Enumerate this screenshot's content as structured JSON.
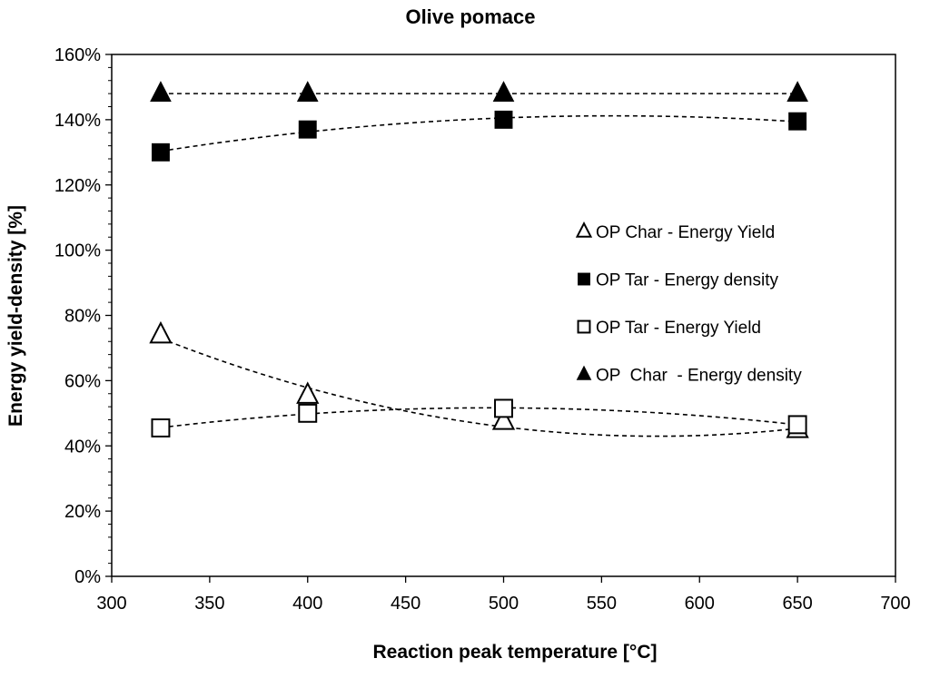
{
  "chart_data": {
    "type": "scatter",
    "title": "Olive pomace",
    "xlabel": "Reaction peak temperature [°C]",
    "ylabel": "Energy yield-density [%]",
    "xlim": [
      300,
      700
    ],
    "ylim": [
      0,
      160
    ],
    "x_ticks": [
      300,
      350,
      400,
      450,
      500,
      550,
      600,
      650,
      700
    ],
    "y_ticks": [
      0,
      20,
      40,
      60,
      80,
      100,
      120,
      140,
      160
    ],
    "y_tick_suffix": "%",
    "grid": false,
    "legend_position": "right-middle",
    "series": [
      {
        "name": "OP Char - Energy Yield",
        "marker": "triangle-open",
        "x": [
          325,
          400,
          500,
          650
        ],
        "y": [
          74,
          55.5,
          47.5,
          45
        ],
        "trendline": "poly2"
      },
      {
        "name": "OP Tar - Energy density",
        "marker": "square-filled",
        "x": [
          325,
          400,
          500,
          650
        ],
        "y": [
          130,
          137,
          140,
          139.5
        ],
        "trendline": "poly2"
      },
      {
        "name": "OP Tar - Energy Yield",
        "marker": "square-open",
        "x": [
          325,
          400,
          500,
          650
        ],
        "y": [
          45.5,
          50,
          51.5,
          46.5
        ],
        "trendline": "poly2"
      },
      {
        "name": "OP  Char  - Energy density",
        "marker": "triangle-filled",
        "x": [
          325,
          400,
          500,
          650
        ],
        "y": [
          148,
          148,
          148,
          148
        ],
        "trendline": "poly2"
      }
    ]
  }
}
